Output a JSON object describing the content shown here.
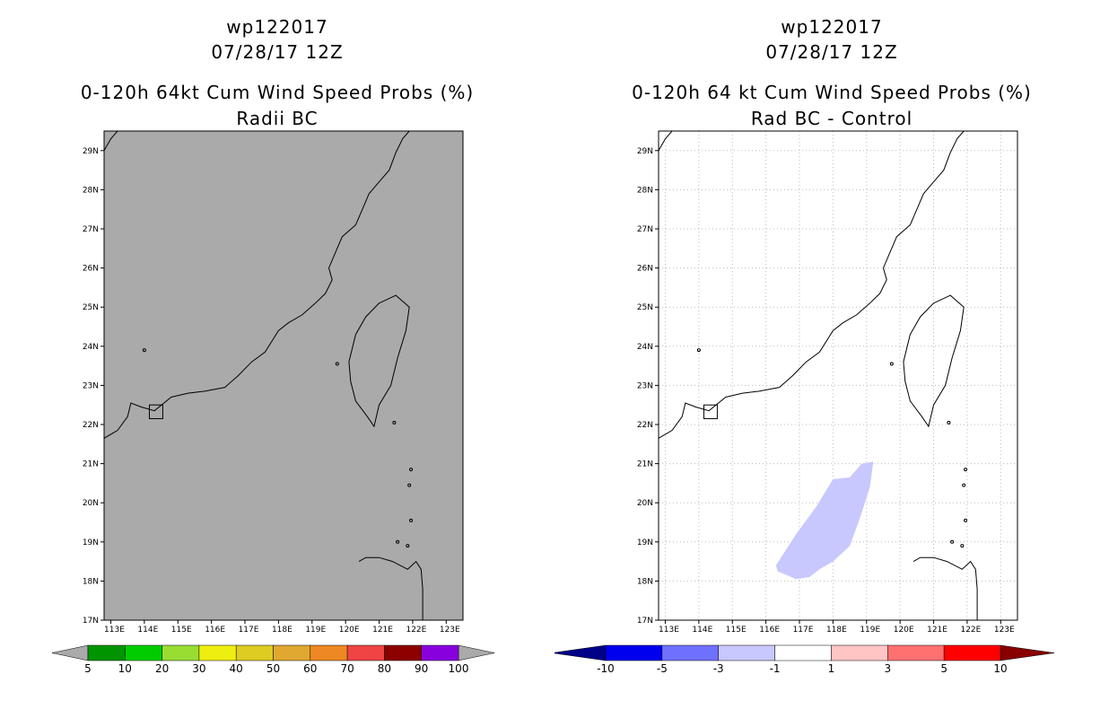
{
  "colors": {
    "background": "#ffffff",
    "map_fill_left": "#aaaaaa",
    "coast": "#000000",
    "grid": "#bbbbbb",
    "diff_blob": "#c8c8ff"
  },
  "chart_data": [
    {
      "type": "heatmap",
      "storm": "wp122017",
      "datetime": "07/28/17 12Z",
      "title": "0-120h 64kt Cum Wind Speed Probs (%)",
      "subtitle": "Radii BC",
      "xlim": [
        112.8,
        123.5
      ],
      "ylim": [
        17,
        29.5
      ],
      "x_ticks": [
        "113E",
        "114E",
        "115E",
        "116E",
        "117E",
        "118E",
        "119E",
        "120E",
        "121E",
        "122E",
        "123E"
      ],
      "y_ticks": [
        "17N",
        "18N",
        "19N",
        "20N",
        "21N",
        "22N",
        "23N",
        "24N",
        "25N",
        "26N",
        "27N",
        "28N",
        "29N"
      ],
      "grid": false,
      "colorbar": {
        "labels": [
          "5",
          "10",
          "20",
          "30",
          "40",
          "50",
          "60",
          "70",
          "80",
          "90",
          "100"
        ],
        "colors": [
          "#009400",
          "#00cc00",
          "#99dd33",
          "#eeee11",
          "#ddcc22",
          "#e0a830",
          "#ee8822",
          "#ee4444",
          "#8c0000",
          "#8800dd"
        ],
        "low_color": "#aaaaaa",
        "high_color": "#aaaaaa"
      },
      "field": "all values below 5% (uniform grey)"
    },
    {
      "type": "heatmap",
      "storm": "wp122017",
      "datetime": "07/28/17 12Z",
      "title": "0-120h 64 kt Cum Wind Speed Probs (%)",
      "subtitle": "Rad BC - Control",
      "xlim": [
        112.8,
        123.5
      ],
      "ylim": [
        17,
        29.5
      ],
      "x_ticks": [
        "113E",
        "114E",
        "115E",
        "116E",
        "117E",
        "118E",
        "119E",
        "120E",
        "121E",
        "122E",
        "123E"
      ],
      "y_ticks": [
        "17N",
        "18N",
        "19N",
        "20N",
        "21N",
        "22N",
        "23N",
        "24N",
        "25N",
        "26N",
        "27N",
        "28N",
        "29N"
      ],
      "grid": true,
      "colorbar": {
        "labels": [
          "-10",
          "-5",
          "-3",
          "-1",
          "1",
          "3",
          "5",
          "10"
        ],
        "colors": [
          "#0000ee",
          "#7070ff",
          "#c8c8ff",
          "#ffffff",
          "#ffc4c4",
          "#ff7070",
          "#ff0000"
        ],
        "low_color": "#000088",
        "high_color": "#880000"
      },
      "anomaly_region": {
        "range": "-3 to -1",
        "polygon_lonlat": [
          [
            116.3,
            18.4
          ],
          [
            116.9,
            19.2
          ],
          [
            117.5,
            19.9
          ],
          [
            118.0,
            20.6
          ],
          [
            118.5,
            20.65
          ],
          [
            118.85,
            21.0
          ],
          [
            119.2,
            21.05
          ],
          [
            119.1,
            20.4
          ],
          [
            118.8,
            19.6
          ],
          [
            118.5,
            18.9
          ],
          [
            118.0,
            18.5
          ],
          [
            117.6,
            18.3
          ],
          [
            117.3,
            18.1
          ],
          [
            116.9,
            18.05
          ],
          [
            116.35,
            18.25
          ]
        ]
      }
    }
  ]
}
